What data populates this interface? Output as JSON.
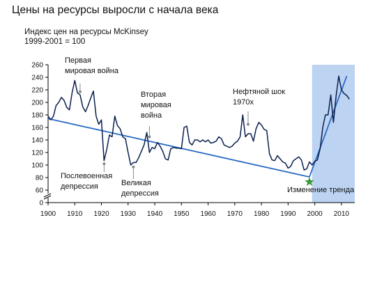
{
  "title": "Цены на ресурсы выросли с начала века",
  "subtitle_line1": "Индекс цен на ресурсы McKinsey",
  "subtitle_line2": "1999-2001 = 100",
  "colors": {
    "line": "#0a1f4e",
    "trend": "#2a6bc4",
    "shade": "#bcd3f2",
    "star": "#3a9a3a",
    "leader": "#888888",
    "axis": "#000000"
  },
  "chart_data": {
    "type": "line",
    "title": "Цены на ресурсы выросли с начала века",
    "xlim": [
      1900,
      2015
    ],
    "ylim": [
      0,
      260
    ],
    "y_break": [
      0,
      60
    ],
    "x_ticks": [
      1900,
      1910,
      1920,
      1930,
      1940,
      1950,
      1960,
      1970,
      1980,
      1990,
      2000,
      2010
    ],
    "y_ticks": [
      0,
      60,
      80,
      100,
      120,
      140,
      160,
      180,
      200,
      220,
      240,
      260
    ],
    "grid": false,
    "shaded_region": {
      "x": [
        1999,
        2015
      ]
    },
    "series": [
      {
        "x": [
          1900,
          1901,
          1902,
          1903,
          1904,
          1905,
          1906,
          1907,
          1908,
          1909,
          1910,
          1911,
          1912,
          1913,
          1914,
          1915,
          1916,
          1917,
          1918,
          1919,
          1920,
          1921,
          1922,
          1923,
          1924,
          1925,
          1926,
          1927,
          1928,
          1929,
          1930,
          1931,
          1932,
          1933,
          1934,
          1935,
          1936,
          1937,
          1938,
          1939,
          1940,
          1941,
          1942,
          1943,
          1944,
          1945,
          1946,
          1947,
          1948,
          1949,
          1950,
          1951,
          1952,
          1953,
          1954,
          1955,
          1956,
          1957,
          1958,
          1959,
          1960,
          1961,
          1962,
          1963,
          1964,
          1965,
          1966,
          1967,
          1968,
          1969,
          1970,
          1971,
          1972,
          1973,
          1974,
          1975,
          1976,
          1977,
          1978,
          1979,
          1980,
          1981,
          1982,
          1983,
          1984,
          1985,
          1986,
          1987,
          1988,
          1989,
          1990,
          1991,
          1992,
          1993,
          1994,
          1995,
          1996,
          1997,
          1998,
          1999,
          2000,
          2001,
          2002,
          2003,
          2004,
          2005,
          2006,
          2007,
          2008,
          2009,
          2010,
          2011,
          2012,
          2013
        ],
        "values": [
          178,
          172,
          178,
          195,
          200,
          208,
          203,
          192,
          188,
          215,
          235,
          215,
          212,
          193,
          185,
          195,
          207,
          218,
          178,
          165,
          172,
          107,
          125,
          148,
          145,
          178,
          163,
          158,
          145,
          142,
          120,
          100,
          104,
          104,
          112,
          122,
          132,
          152,
          120,
          128,
          126,
          136,
          130,
          122,
          110,
          108,
          126,
          128,
          127,
          127,
          126,
          160,
          162,
          136,
          132,
          140,
          140,
          137,
          140,
          137,
          140,
          135,
          136,
          138,
          145,
          142,
          132,
          130,
          128,
          130,
          135,
          138,
          145,
          180,
          145,
          150,
          150,
          138,
          158,
          168,
          164,
          157,
          155,
          118,
          108,
          107,
          115,
          110,
          105,
          103,
          95,
          98,
          107,
          110,
          113,
          108,
          92,
          94,
          105,
          100,
          106,
          108,
          126,
          160,
          180,
          180,
          212,
          168,
          210,
          242,
          220,
          214,
          211,
          205
        ]
      }
    ],
    "trend_lines": [
      {
        "x": [
          1900,
          1998
        ],
        "y": [
          174,
          81
        ]
      },
      {
        "x": [
          1998,
          2012
        ],
        "y": [
          81,
          242
        ]
      }
    ],
    "marker": {
      "type": "star",
      "x": 1998,
      "y": 73
    },
    "annotations": [
      {
        "id": "ww1",
        "lines": [
          "Первая",
          "мировая война"
        ],
        "x": 1912,
        "y": 217
      },
      {
        "id": "postwar",
        "lines": [
          "Послевоенная",
          "депрессия"
        ],
        "x": 1921,
        "y": 102
      },
      {
        "id": "great",
        "lines": [
          "Великая",
          "депрессия"
        ],
        "x": 1932,
        "y": 97
      },
      {
        "id": "ww2",
        "lines": [
          "Вторая",
          "мировая",
          "война"
        ],
        "x": 1938,
        "y": 145
      },
      {
        "id": "oil",
        "lines": [
          "Нефтяной шок",
          "1970х"
        ],
        "x": 1975,
        "y": 165
      },
      {
        "id": "trend",
        "lines": [
          "Изменение тренда"
        ],
        "x": 1998,
        "y": 73
      }
    ]
  }
}
